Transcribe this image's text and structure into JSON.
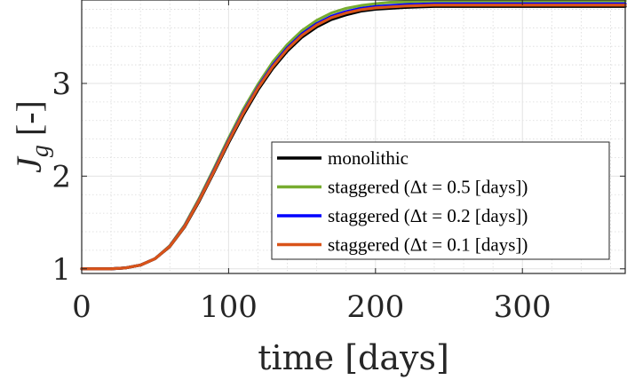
{
  "chart_data": {
    "type": "line",
    "title": "",
    "xlabel": "time [days]",
    "ylabel": "J_g [-]",
    "ylabel_main": "J",
    "ylabel_sub": "g",
    "ylabel_unit": "[-]",
    "xlim": [
      0,
      370
    ],
    "ylim": [
      0.95,
      3.9
    ],
    "xticks": [
      0,
      100,
      200,
      300
    ],
    "xtick_labels": [
      "0",
      "100",
      "200",
      "300"
    ],
    "yticks": [
      1,
      2,
      3
    ],
    "ytick_labels": [
      "1",
      "2",
      "3"
    ],
    "grid": true,
    "minor_grid": true,
    "legend_position": "right",
    "x": [
      0,
      10,
      20,
      30,
      40,
      50,
      60,
      70,
      80,
      90,
      100,
      110,
      120,
      130,
      140,
      150,
      160,
      170,
      180,
      190,
      200,
      210,
      220,
      230,
      240,
      260,
      280,
      300,
      320,
      340,
      370
    ],
    "series": [
      {
        "name": "monolithic",
        "color": "#000000",
        "values": [
          1.0,
          1.0,
          1.0,
          1.01,
          1.04,
          1.11,
          1.24,
          1.45,
          1.73,
          2.04,
          2.36,
          2.66,
          2.93,
          3.16,
          3.35,
          3.5,
          3.61,
          3.69,
          3.74,
          3.78,
          3.8,
          3.81,
          3.82,
          3.825,
          3.83,
          3.83,
          3.83,
          3.83,
          3.83,
          3.83,
          3.83
        ]
      },
      {
        "name": "staggered (Δt = 0.5 [days])",
        "color": "#77ac30",
        "values": [
          1.0,
          1.0,
          1.0,
          1.01,
          1.04,
          1.11,
          1.25,
          1.47,
          1.76,
          2.08,
          2.41,
          2.72,
          2.99,
          3.23,
          3.42,
          3.57,
          3.68,
          3.76,
          3.81,
          3.84,
          3.86,
          3.875,
          3.88,
          3.885,
          3.89,
          3.89,
          3.89,
          3.89,
          3.89,
          3.89,
          3.89
        ]
      },
      {
        "name": "staggered (Δt = 0.2 [days])",
        "color": "#0000ff",
        "values": [
          1.0,
          1.0,
          1.0,
          1.01,
          1.04,
          1.11,
          1.245,
          1.46,
          1.745,
          2.06,
          2.385,
          2.69,
          2.96,
          3.195,
          3.385,
          3.535,
          3.645,
          3.725,
          3.775,
          3.81,
          3.83,
          3.84,
          3.85,
          3.855,
          3.86,
          3.86,
          3.86,
          3.86,
          3.86,
          3.86,
          3.86
        ]
      },
      {
        "name": "staggered (Δt = 0.1 [days])",
        "color": "#d95319",
        "values": [
          1.0,
          1.0,
          1.0,
          1.01,
          1.04,
          1.11,
          1.243,
          1.455,
          1.74,
          2.05,
          2.375,
          2.68,
          2.95,
          3.18,
          3.37,
          3.52,
          3.63,
          3.71,
          3.76,
          3.795,
          3.815,
          3.825,
          3.835,
          3.84,
          3.845,
          3.845,
          3.845,
          3.845,
          3.845,
          3.845,
          3.845
        ]
      }
    ],
    "legend": [
      {
        "label": "monolithic",
        "color": "#000000"
      },
      {
        "label": "staggered (Δt = 0.5 [days])",
        "color": "#77ac30"
      },
      {
        "label": "staggered (Δt = 0.2 [days])",
        "color": "#0000ff"
      },
      {
        "label": "staggered (Δt = 0.1 [days])",
        "color": "#d95319"
      }
    ]
  }
}
